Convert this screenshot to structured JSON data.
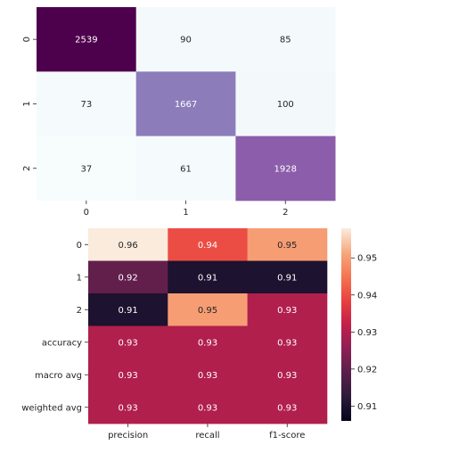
{
  "chart_data": [
    {
      "type": "heatmap",
      "title": "",
      "xlabel": "",
      "ylabel": "",
      "x_labels": [
        "0",
        "1",
        "2"
      ],
      "y_labels": [
        "0",
        "1",
        "2"
      ],
      "values": [
        [
          2539,
          90,
          85
        ],
        [
          73,
          1667,
          100
        ],
        [
          37,
          61,
          1928
        ]
      ],
      "value_format": "integer",
      "colormap": "BuPu",
      "colorbar": false
    },
    {
      "type": "heatmap",
      "title": "",
      "xlabel": "",
      "ylabel": "",
      "x_labels": [
        "precision",
        "recall",
        "f1-score"
      ],
      "y_labels": [
        "0",
        "1",
        "2",
        "accuracy",
        "macro avg",
        "weighted avg"
      ],
      "values": [
        [
          0.96,
          0.94,
          0.95
        ],
        [
          0.92,
          0.91,
          0.91
        ],
        [
          0.91,
          0.95,
          0.93
        ],
        [
          0.93,
          0.93,
          0.93
        ],
        [
          0.93,
          0.93,
          0.93
        ],
        [
          0.93,
          0.93,
          0.93
        ]
      ],
      "value_format": "2 decimals",
      "colormap": "rocket",
      "colorbar": true,
      "colorbar_ticks": [
        0.91,
        0.92,
        0.93,
        0.94,
        0.95
      ],
      "colorbar_range": [
        0.906,
        0.958
      ]
    }
  ]
}
